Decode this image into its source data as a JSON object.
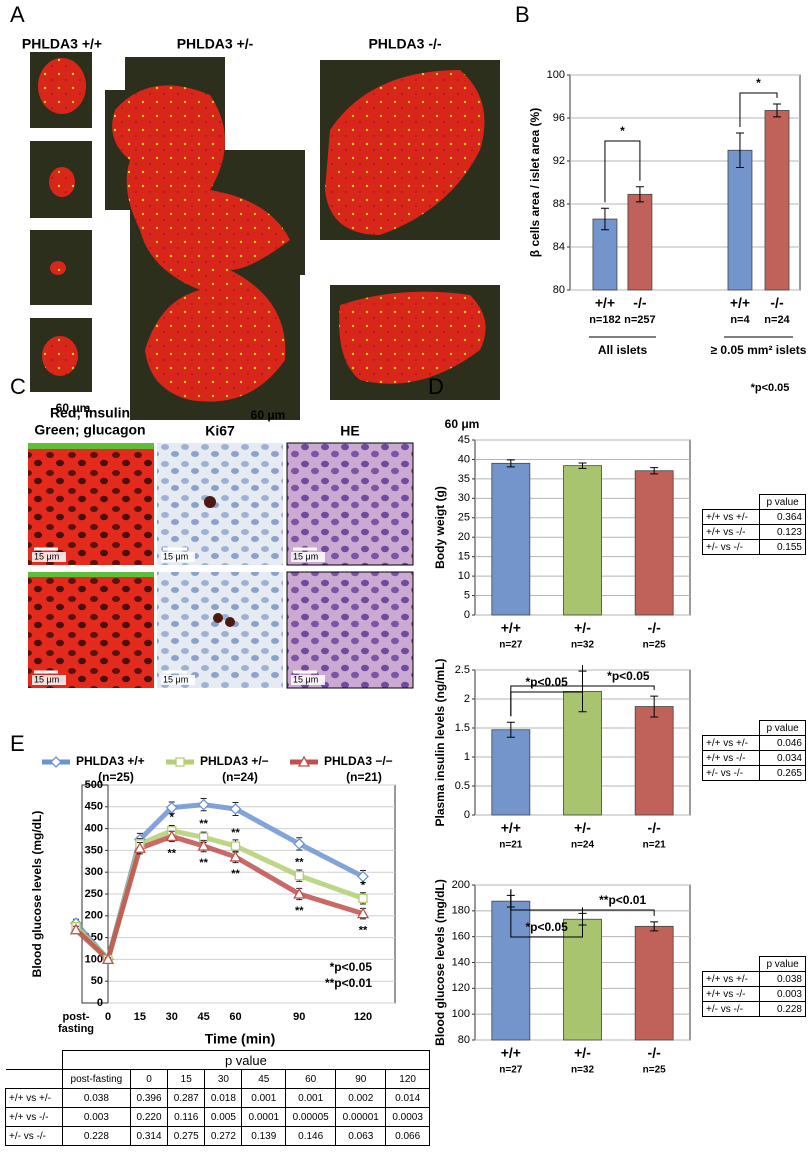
{
  "panel_labels": [
    "A",
    "B",
    "C",
    "D",
    "E"
  ],
  "panel_a": {
    "titles": [
      "PHLDA3 +/+",
      "PHLDA3 +/-",
      "PHLDA3 -/-"
    ],
    "scale_bars": [
      "60 μm",
      "60 μm",
      "60 μm"
    ]
  },
  "panel_c": {
    "titles": [
      "Red; insulin",
      "Green; glucagon",
      "Ki67",
      "HE"
    ],
    "scale_bars": [
      "15 μm",
      "15 μm",
      "15 μm",
      "15 μm",
      "15 μm",
      "15 μm"
    ]
  },
  "chart_data": [
    {
      "type": "bar",
      "ylabel": "β cells area / islet area (%)",
      "ylim": [
        80,
        100
      ],
      "yticks": [
        80,
        84,
        88,
        92,
        96,
        100
      ],
      "grid": true,
      "categories": [
        "+/+",
        "-/-",
        "+/+",
        "-/-"
      ],
      "n_labels": [
        "n=182",
        "n=257",
        "n=4",
        "n=24"
      ],
      "group_labels": [
        "All islets",
        "≥ 0.05 mm² islets"
      ],
      "values": [
        86.6,
        88.9,
        93.0,
        96.7
      ],
      "errors": [
        1.0,
        0.7,
        1.6,
        0.6
      ],
      "colors": [
        "#7395cc",
        "#c0625a",
        "#7395cc",
        "#c0625a"
      ],
      "significance": [
        "*",
        "*"
      ],
      "note": "*p<0.05"
    },
    {
      "type": "bar",
      "ylabel": "Body weigt (g)",
      "ylim": [
        0,
        45
      ],
      "yticks": [
        0,
        5,
        10,
        15,
        20,
        25,
        30,
        35,
        40,
        45
      ],
      "grid": true,
      "categories": [
        "+/+",
        "+/-",
        "-/-"
      ],
      "n_labels": [
        "n=27",
        "n=32",
        "n=25"
      ],
      "values": [
        39.0,
        38.4,
        37.1
      ],
      "errors": [
        0.9,
        0.7,
        0.8
      ],
      "colors": [
        "#7395cc",
        "#a9c46f",
        "#c0625a"
      ],
      "p_table": {
        "header": "p value",
        "rows": [
          [
            "+/+ vs +/-",
            "0.364"
          ],
          [
            "+/+ vs -/-",
            "0.123"
          ],
          [
            "+/- vs -/-",
            "0.155"
          ]
        ]
      }
    },
    {
      "type": "bar",
      "ylabel": "Plasma insulin levels (ng/mL)",
      "ylim": [
        0,
        2.5
      ],
      "yticks": [
        0,
        0.5,
        1,
        1.5,
        2,
        2.5
      ],
      "grid": true,
      "categories": [
        "+/+",
        "+/-",
        "-/-"
      ],
      "n_labels": [
        "n=21",
        "n=24",
        "n=21"
      ],
      "values": [
        1.47,
        2.13,
        1.87
      ],
      "errors": [
        0.13,
        0.35,
        0.18
      ],
      "colors": [
        "#7395cc",
        "#a9c46f",
        "#c0625a"
      ],
      "significance": [
        "*p<0.05",
        "*p<0.05"
      ],
      "p_table": {
        "header": "p value",
        "rows": [
          [
            "+/+ vs +/-",
            "0.046"
          ],
          [
            "+/+ vs -/-",
            "0.034"
          ],
          [
            "+/- vs -/-",
            "0.265"
          ]
        ]
      }
    },
    {
      "type": "bar",
      "ylabel": "Blood glucose levels (mg/dL)",
      "ylim": [
        80,
        200
      ],
      "yticks": [
        80,
        100,
        120,
        140,
        160,
        180,
        200
      ],
      "grid": true,
      "categories": [
        "+/+",
        "+/-",
        "-/-"
      ],
      "n_labels": [
        "n=27",
        "n=32",
        "n=25"
      ],
      "values": [
        187.5,
        173.5,
        168.0
      ],
      "errors": [
        4.5,
        4.5,
        3.5
      ],
      "colors": [
        "#7395cc",
        "#a9c46f",
        "#c0625a"
      ],
      "significance": [
        "*p<0.05",
        "**p<0.01"
      ],
      "p_table": {
        "header": "p value",
        "rows": [
          [
            "+/+ vs +/-",
            "0.038"
          ],
          [
            "+/+ vs -/-",
            "0.003"
          ],
          [
            "+/- vs -/-",
            "0.228"
          ]
        ]
      }
    },
    {
      "type": "line",
      "ylabel": "Blood glucose levels (mg/dL)",
      "xlabel": "Time (min)",
      "categories": [
        "post-fasting",
        "0",
        "15",
        "30",
        "45",
        "60",
        "90",
        "120"
      ],
      "ylim": [
        0,
        500
      ],
      "yticks": [
        0,
        50,
        100,
        150,
        200,
        250,
        300,
        350,
        400,
        450,
        500
      ],
      "grid": true,
      "series": [
        {
          "name": "PHLDA3 +/+",
          "n_label": "(n=25)",
          "color": "#6d93d4",
          "marker": "diamond",
          "values": [
            183,
            100,
            375,
            448,
            455,
            445,
            365,
            290
          ],
          "errors": [
            9,
            5,
            14,
            13,
            14,
            15,
            14,
            14
          ]
        },
        {
          "name": "PHLDA3 +/−",
          "n_label": "(n=24)",
          "color": "#b3cf72",
          "marker": "square",
          "values": [
            175,
            100,
            365,
            395,
            380,
            360,
            292,
            240
          ],
          "errors": [
            8,
            4,
            12,
            12,
            12,
            14,
            13,
            13
          ]
        },
        {
          "name": "PHLDA3 −/−",
          "n_label": "(n=21)",
          "color": "#c0504d",
          "marker": "triangle",
          "values": [
            168,
            100,
            355,
            382,
            360,
            335,
            250,
            205
          ],
          "errors": [
            8,
            4,
            13,
            12,
            13,
            13,
            13,
            12
          ]
        }
      ],
      "stars_upper": [
        null,
        null,
        null,
        "*",
        "**",
        "**",
        "**",
        "*"
      ],
      "stars_lower": [
        null,
        null,
        null,
        "**",
        "**",
        "**",
        "**",
        "**"
      ],
      "notes": [
        "*p<0.05",
        "**p<0.01"
      ],
      "p_table": {
        "header": "p value",
        "rows": [
          {
            "label": "+/+ vs +/-",
            "values": [
              "0.038",
              "0.396",
              "0.287",
              "0.018",
              "0.001",
              "0.001",
              "0.002",
              "0.014"
            ]
          },
          {
            "label": "+/+ vs -/-",
            "values": [
              "0.003",
              "0.220",
              "0.116",
              "0.005",
              "0.0001",
              "0.00005",
              "0.00001",
              "0.0003"
            ]
          },
          {
            "label": "+/- vs -/-",
            "values": [
              "0.228",
              "0.314",
              "0.275",
              "0.272",
              "0.139",
              "0.146",
              "0.063",
              "0.066"
            ]
          }
        ]
      }
    }
  ]
}
